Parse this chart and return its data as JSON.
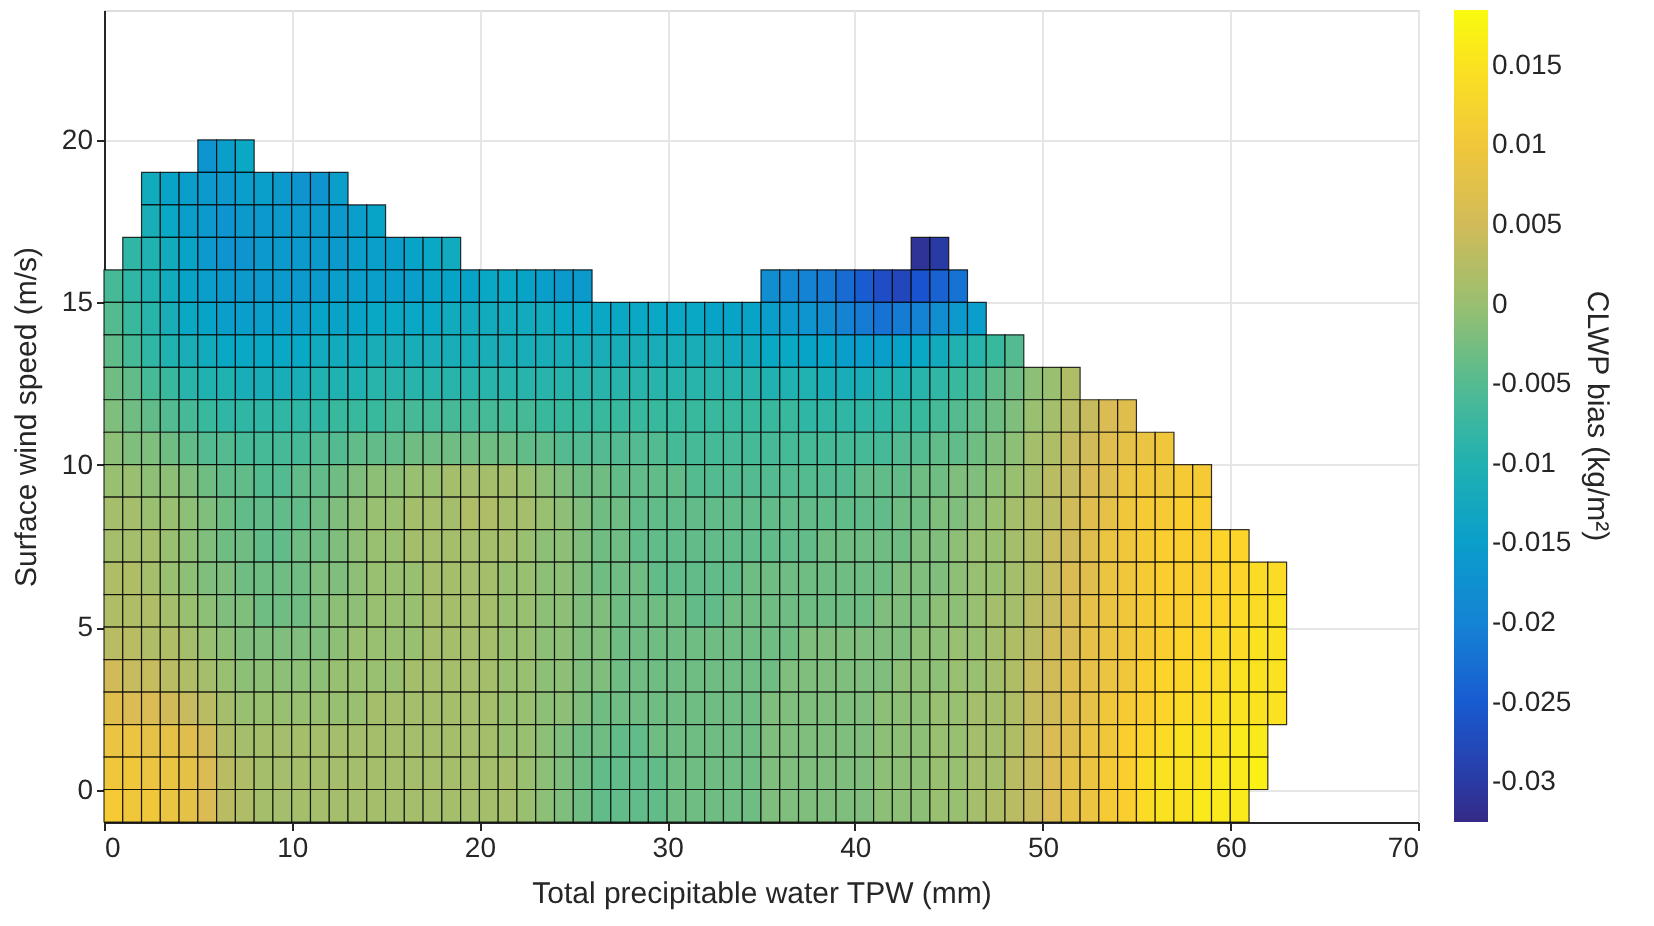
{
  "chart_data": {
    "type": "heatmap",
    "xlabel": "Total precipitable water TPW (mm)",
    "ylabel": "Surface wind speed (m/s)",
    "clabel": "CLWP bias (kg/m²)",
    "x": [
      0.5,
      1.5,
      2.5,
      3.5,
      4.5,
      5.5,
      6.5,
      7.5,
      8.5,
      9.5,
      10.5,
      11.5,
      12.5,
      13.5,
      14.5,
      15.5,
      16.5,
      17.5,
      18.5,
      19.5,
      20.5,
      21.5,
      22.5,
      23.5,
      24.5,
      25.5,
      26.5,
      27.5,
      28.5,
      29.5,
      30.5,
      31.5,
      32.5,
      33.5,
      34.5,
      35.5,
      36.5,
      37.5,
      38.5,
      39.5,
      40.5,
      41.5,
      42.5,
      43.5,
      44.5,
      45.5,
      46.5,
      47.5,
      48.5,
      49.5,
      50.5,
      51.5,
      52.5,
      53.5,
      54.5,
      55.5,
      56.5,
      57.5,
      58.5,
      59.5,
      60.5,
      61.5,
      62.5
    ],
    "y": [
      19.5,
      18.5,
      17.5,
      16.5,
      15.5,
      14.5,
      13.5,
      12.5,
      11.5,
      10.5,
      9.5,
      8.5,
      7.5,
      6.5,
      5.5,
      4.5,
      3.5,
      2.5,
      1.5,
      0.5,
      -0.5
    ],
    "cells": [
      [
        null,
        null,
        null,
        null,
        null,
        -0.017,
        -0.015,
        -0.013,
        null,
        null,
        null,
        null,
        null,
        null,
        null,
        null,
        null,
        null,
        null,
        null,
        null,
        null,
        null,
        null,
        null,
        null,
        null,
        null,
        null,
        null,
        null,
        null,
        null,
        null,
        null,
        null,
        null,
        null,
        null,
        null,
        null,
        null,
        null,
        null,
        null,
        null,
        null,
        null,
        null,
        null,
        null,
        null,
        null,
        null,
        null,
        null,
        null,
        null,
        null,
        null,
        null,
        null,
        null
      ],
      [
        null,
        null,
        -0.012,
        -0.014,
        -0.015,
        -0.016,
        -0.016,
        -0.015,
        -0.015,
        -0.016,
        -0.017,
        -0.017,
        -0.015,
        null,
        null,
        null,
        null,
        null,
        null,
        null,
        null,
        null,
        null,
        null,
        null,
        null,
        null,
        null,
        null,
        null,
        null,
        null,
        null,
        null,
        null,
        null,
        null,
        null,
        null,
        null,
        null,
        null,
        null,
        null,
        null,
        null,
        null,
        null,
        null,
        null,
        null,
        null,
        null,
        null,
        null,
        null,
        null,
        null,
        null,
        null,
        null,
        null,
        null
      ],
      [
        null,
        null,
        -0.011,
        -0.013,
        -0.015,
        -0.016,
        -0.017,
        -0.016,
        -0.016,
        -0.016,
        -0.016,
        -0.016,
        -0.016,
        -0.015,
        -0.014,
        null,
        null,
        null,
        null,
        null,
        null,
        null,
        null,
        null,
        null,
        null,
        null,
        null,
        null,
        null,
        null,
        null,
        null,
        null,
        null,
        null,
        null,
        null,
        null,
        null,
        null,
        null,
        null,
        null,
        null,
        null,
        null,
        null,
        null,
        null,
        null,
        null,
        null,
        null,
        null,
        null,
        null,
        null,
        null,
        null,
        null,
        null,
        null
      ],
      [
        null,
        -0.008,
        -0.01,
        -0.012,
        -0.014,
        -0.016,
        -0.017,
        -0.017,
        -0.016,
        -0.016,
        -0.016,
        -0.016,
        -0.016,
        -0.015,
        -0.015,
        -0.015,
        -0.014,
        -0.013,
        -0.012,
        null,
        null,
        null,
        null,
        null,
        null,
        null,
        null,
        null,
        null,
        null,
        null,
        null,
        null,
        null,
        null,
        null,
        null,
        null,
        null,
        null,
        null,
        null,
        null,
        -0.031,
        -0.03,
        null,
        null,
        null,
        null,
        null,
        null,
        null,
        null,
        null,
        null,
        null,
        null,
        null,
        null,
        null,
        null,
        null,
        null
      ],
      [
        -0.006,
        -0.008,
        -0.01,
        -0.012,
        -0.014,
        -0.015,
        -0.016,
        -0.016,
        -0.016,
        -0.016,
        -0.016,
        -0.016,
        -0.015,
        -0.015,
        -0.015,
        -0.015,
        -0.015,
        -0.014,
        -0.014,
        -0.014,
        -0.013,
        -0.013,
        -0.014,
        -0.015,
        -0.016,
        -0.016,
        null,
        null,
        null,
        null,
        null,
        null,
        null,
        null,
        null,
        -0.018,
        -0.019,
        -0.02,
        -0.021,
        -0.023,
        -0.025,
        -0.027,
        -0.028,
        -0.026,
        -0.024,
        -0.022,
        null,
        null,
        null,
        null,
        null,
        null,
        null,
        null,
        null,
        null,
        null,
        null,
        null,
        null,
        null,
        null,
        null
      ],
      [
        -0.005,
        -0.007,
        -0.009,
        -0.011,
        -0.013,
        -0.014,
        -0.015,
        -0.015,
        -0.015,
        -0.015,
        -0.015,
        -0.014,
        -0.014,
        -0.014,
        -0.013,
        -0.013,
        -0.013,
        -0.013,
        -0.012,
        -0.012,
        -0.012,
        -0.012,
        -0.012,
        -0.012,
        -0.013,
        -0.013,
        -0.013,
        -0.013,
        -0.013,
        -0.013,
        -0.013,
        -0.013,
        -0.014,
        -0.014,
        -0.014,
        -0.015,
        -0.016,
        -0.017,
        -0.018,
        -0.02,
        -0.021,
        -0.022,
        -0.021,
        -0.02,
        -0.018,
        -0.016,
        -0.015,
        null,
        null,
        null,
        null,
        null,
        null,
        null,
        null,
        null,
        null,
        null,
        null,
        null,
        null,
        null,
        null
      ],
      [
        -0.004,
        -0.006,
        -0.008,
        -0.01,
        -0.011,
        -0.012,
        -0.013,
        -0.013,
        -0.013,
        -0.013,
        -0.013,
        -0.012,
        -0.012,
        -0.012,
        -0.011,
        -0.011,
        -0.011,
        -0.011,
        -0.011,
        -0.011,
        -0.011,
        -0.011,
        -0.011,
        -0.011,
        -0.011,
        -0.011,
        -0.011,
        -0.011,
        -0.011,
        -0.011,
        -0.011,
        -0.011,
        -0.011,
        -0.012,
        -0.012,
        -0.013,
        -0.013,
        -0.014,
        -0.014,
        -0.015,
        -0.015,
        -0.015,
        -0.014,
        -0.013,
        -0.012,
        -0.01,
        -0.009,
        -0.007,
        -0.005,
        null,
        null,
        null,
        null,
        null,
        null,
        null,
        null,
        null,
        null,
        null,
        null,
        null,
        null
      ],
      [
        -0.003,
        -0.004,
        -0.006,
        -0.007,
        -0.009,
        -0.01,
        -0.01,
        -0.011,
        -0.011,
        -0.011,
        -0.011,
        -0.01,
        -0.01,
        -0.01,
        -0.009,
        -0.009,
        -0.009,
        -0.009,
        -0.009,
        -0.009,
        -0.009,
        -0.009,
        -0.009,
        -0.009,
        -0.009,
        -0.009,
        -0.009,
        -0.009,
        -0.009,
        -0.009,
        -0.009,
        -0.009,
        -0.009,
        -0.009,
        -0.009,
        -0.01,
        -0.01,
        -0.01,
        -0.011,
        -0.011,
        -0.011,
        -0.01,
        -0.01,
        -0.009,
        -0.008,
        -0.007,
        -0.006,
        -0.004,
        -0.003,
        -0.001,
        0.0,
        0.002,
        null,
        null,
        null,
        null,
        null,
        null,
        null,
        null,
        null,
        null,
        null
      ],
      [
        -0.002,
        -0.003,
        -0.004,
        -0.005,
        -0.006,
        -0.007,
        -0.008,
        -0.008,
        -0.008,
        -0.008,
        -0.008,
        -0.008,
        -0.007,
        -0.007,
        -0.007,
        -0.006,
        -0.006,
        -0.006,
        -0.006,
        -0.006,
        -0.006,
        -0.006,
        -0.006,
        -0.007,
        -0.007,
        -0.007,
        -0.007,
        -0.007,
        -0.007,
        -0.007,
        -0.007,
        -0.007,
        -0.007,
        -0.007,
        -0.007,
        -0.007,
        -0.007,
        -0.008,
        -0.008,
        -0.008,
        -0.008,
        -0.008,
        -0.007,
        -0.007,
        -0.006,
        -0.005,
        -0.004,
        -0.003,
        -0.002,
        0.0,
        0.001,
        0.003,
        0.004,
        0.006,
        0.007,
        null,
        null,
        null,
        null,
        null,
        null,
        null,
        null
      ],
      [
        -0.001,
        -0.002,
        -0.002,
        -0.003,
        -0.004,
        -0.005,
        -0.005,
        -0.006,
        -0.006,
        -0.006,
        -0.006,
        -0.005,
        -0.005,
        -0.004,
        -0.004,
        -0.004,
        -0.003,
        -0.003,
        -0.003,
        -0.003,
        -0.003,
        -0.003,
        -0.004,
        -0.004,
        -0.005,
        -0.005,
        -0.005,
        -0.005,
        -0.005,
        -0.005,
        -0.006,
        -0.006,
        -0.006,
        -0.006,
        -0.006,
        -0.006,
        -0.006,
        -0.006,
        -0.006,
        -0.006,
        -0.006,
        -0.006,
        -0.005,
        -0.005,
        -0.004,
        -0.004,
        -0.003,
        -0.002,
        -0.001,
        0.001,
        0.002,
        0.004,
        0.005,
        0.007,
        0.008,
        0.009,
        0.01,
        null,
        null,
        null,
        null,
        null,
        null
      ],
      [
        0.0,
        0.0,
        -0.001,
        -0.001,
        -0.002,
        -0.003,
        -0.004,
        -0.004,
        -0.005,
        -0.005,
        -0.004,
        -0.004,
        -0.003,
        -0.002,
        -0.001,
        -0.001,
        0.0,
        0.0,
        0.001,
        0.001,
        0.001,
        0.001,
        0.0,
        -0.001,
        -0.002,
        -0.003,
        -0.003,
        -0.004,
        -0.004,
        -0.004,
        -0.004,
        -0.005,
        -0.005,
        -0.005,
        -0.005,
        -0.005,
        -0.005,
        -0.005,
        -0.005,
        -0.005,
        -0.004,
        -0.004,
        -0.004,
        -0.003,
        -0.003,
        -0.002,
        -0.002,
        -0.001,
        0.0,
        0.001,
        0.003,
        0.004,
        0.006,
        0.007,
        0.009,
        0.01,
        0.01,
        0.011,
        0.011,
        null,
        null,
        null,
        null
      ],
      [
        0.001,
        0.001,
        0.0,
        0.0,
        -0.001,
        -0.002,
        -0.003,
        -0.004,
        -0.004,
        -0.004,
        -0.004,
        -0.003,
        -0.002,
        -0.001,
        0.0,
        0.0,
        0.001,
        0.001,
        0.001,
        0.002,
        0.002,
        0.001,
        0.001,
        0.0,
        -0.001,
        -0.002,
        -0.003,
        -0.003,
        -0.004,
        -0.004,
        -0.004,
        -0.004,
        -0.004,
        -0.004,
        -0.004,
        -0.004,
        -0.004,
        -0.004,
        -0.004,
        -0.004,
        -0.004,
        -0.004,
        -0.003,
        -0.003,
        -0.002,
        -0.002,
        -0.001,
        0.0,
        0.001,
        0.002,
        0.003,
        0.005,
        0.007,
        0.008,
        0.01,
        0.011,
        0.011,
        0.012,
        0.012,
        null,
        null,
        null,
        null
      ],
      [
        0.001,
        0.001,
        0.001,
        0.0,
        -0.001,
        -0.002,
        -0.003,
        -0.003,
        -0.004,
        -0.004,
        -0.003,
        -0.003,
        -0.002,
        -0.001,
        0.0,
        0.0,
        0.001,
        0.001,
        0.001,
        0.001,
        0.001,
        0.001,
        0.0,
        -0.001,
        -0.001,
        -0.002,
        -0.003,
        -0.003,
        -0.004,
        -0.004,
        -0.004,
        -0.004,
        -0.004,
        -0.004,
        -0.004,
        -0.004,
        -0.004,
        -0.004,
        -0.003,
        -0.003,
        -0.003,
        -0.003,
        -0.003,
        -0.002,
        -0.002,
        -0.001,
        0.0,
        0.0,
        0.001,
        0.002,
        0.004,
        0.005,
        0.007,
        0.009,
        0.01,
        0.011,
        0.012,
        0.012,
        0.012,
        0.013,
        0.013,
        null,
        null
      ],
      [
        0.002,
        0.002,
        0.001,
        0.0,
        -0.001,
        -0.002,
        -0.002,
        -0.003,
        -0.003,
        -0.003,
        -0.003,
        -0.002,
        -0.002,
        -0.001,
        0.0,
        0.0,
        0.0,
        0.001,
        0.001,
        0.001,
        0.001,
        0.0,
        0.0,
        -0.001,
        -0.001,
        -0.002,
        -0.003,
        -0.003,
        -0.003,
        -0.004,
        -0.004,
        -0.004,
        -0.004,
        -0.004,
        -0.003,
        -0.003,
        -0.003,
        -0.003,
        -0.003,
        -0.003,
        -0.003,
        -0.003,
        -0.002,
        -0.002,
        -0.002,
        -0.001,
        0.0,
        0.0,
        0.001,
        0.002,
        0.004,
        0.006,
        0.007,
        0.009,
        0.01,
        0.011,
        0.012,
        0.012,
        0.012,
        0.013,
        0.013,
        0.014,
        0.014
      ],
      [
        0.002,
        0.002,
        0.002,
        0.001,
        0.0,
        -0.001,
        -0.002,
        -0.002,
        -0.003,
        -0.003,
        -0.003,
        -0.002,
        -0.001,
        -0.001,
        0.0,
        0.0,
        0.0,
        0.001,
        0.001,
        0.001,
        0.001,
        0.0,
        0.0,
        -0.001,
        -0.001,
        -0.002,
        -0.002,
        -0.003,
        -0.003,
        -0.003,
        -0.003,
        -0.004,
        -0.004,
        -0.003,
        -0.003,
        -0.003,
        -0.003,
        -0.003,
        -0.003,
        -0.003,
        -0.003,
        -0.002,
        -0.002,
        -0.002,
        -0.001,
        -0.001,
        0.0,
        0.001,
        0.001,
        0.003,
        0.004,
        0.006,
        0.008,
        0.009,
        0.01,
        0.011,
        0.012,
        0.012,
        0.013,
        0.013,
        0.014,
        0.014,
        0.015
      ],
      [
        0.003,
        0.003,
        0.002,
        0.002,
        0.001,
        0.0,
        -0.001,
        -0.002,
        -0.002,
        -0.002,
        -0.002,
        -0.002,
        -0.001,
        0.0,
        0.0,
        0.0,
        0.0,
        0.001,
        0.001,
        0.001,
        0.001,
        0.0,
        0.0,
        -0.001,
        -0.001,
        -0.002,
        -0.002,
        -0.003,
        -0.003,
        -0.003,
        -0.003,
        -0.003,
        -0.003,
        -0.003,
        -0.003,
        -0.003,
        -0.003,
        -0.002,
        -0.002,
        -0.002,
        -0.002,
        -0.002,
        -0.002,
        -0.001,
        -0.001,
        0.0,
        0.0,
        0.001,
        0.002,
        0.003,
        0.005,
        0.006,
        0.008,
        0.009,
        0.01,
        0.011,
        0.012,
        0.013,
        0.013,
        0.014,
        0.014,
        0.015,
        0.015
      ],
      [
        0.005,
        0.004,
        0.004,
        0.003,
        0.002,
        0.001,
        0.0,
        -0.001,
        -0.001,
        -0.001,
        -0.001,
        -0.001,
        0.0,
        0.0,
        0.0,
        0.0,
        0.001,
        0.001,
        0.001,
        0.001,
        0.001,
        0.0,
        0.0,
        -0.001,
        -0.001,
        -0.002,
        -0.002,
        -0.003,
        -0.003,
        -0.003,
        -0.003,
        -0.003,
        -0.003,
        -0.003,
        -0.003,
        -0.003,
        -0.002,
        -0.002,
        -0.002,
        -0.002,
        -0.002,
        -0.002,
        -0.001,
        -0.001,
        -0.001,
        0.0,
        0.0,
        0.001,
        0.002,
        0.004,
        0.005,
        0.007,
        0.008,
        0.009,
        0.01,
        0.012,
        0.013,
        0.013,
        0.014,
        0.014,
        0.015,
        0.015,
        0.015
      ],
      [
        0.007,
        0.006,
        0.006,
        0.005,
        0.004,
        0.003,
        0.001,
        0.0,
        0.0,
        0.0,
        0.0,
        0.0,
        0.0,
        0.0,
        0.001,
        0.001,
        0.001,
        0.001,
        0.001,
        0.001,
        0.001,
        0.0,
        0.0,
        -0.001,
        -0.001,
        -0.002,
        -0.003,
        -0.003,
        -0.003,
        -0.003,
        -0.003,
        -0.003,
        -0.003,
        -0.003,
        -0.003,
        -0.002,
        -0.002,
        -0.002,
        -0.002,
        -0.002,
        -0.002,
        -0.001,
        -0.001,
        -0.001,
        0.0,
        0.0,
        0.001,
        0.001,
        0.002,
        0.004,
        0.005,
        0.007,
        0.008,
        0.01,
        0.011,
        0.012,
        0.013,
        0.014,
        0.014,
        0.015,
        0.015,
        0.015,
        0.015
      ],
      [
        0.009,
        0.009,
        0.008,
        0.008,
        0.007,
        0.005,
        0.002,
        0.001,
        0.001,
        0.001,
        0.001,
        0.001,
        0.001,
        0.001,
        0.001,
        0.001,
        0.001,
        0.001,
        0.001,
        0.001,
        0.001,
        0.0,
        0.0,
        -0.001,
        -0.002,
        -0.003,
        -0.003,
        -0.004,
        -0.004,
        -0.003,
        -0.003,
        -0.003,
        -0.003,
        -0.003,
        -0.003,
        -0.002,
        -0.002,
        -0.002,
        -0.002,
        -0.002,
        -0.002,
        -0.001,
        -0.001,
        -0.001,
        0.0,
        0.0,
        0.001,
        0.001,
        0.002,
        0.004,
        0.006,
        0.007,
        0.009,
        0.01,
        0.012,
        0.013,
        0.014,
        0.015,
        0.015,
        0.015,
        0.016,
        0.016,
        null
      ],
      [
        0.01,
        0.01,
        0.009,
        0.009,
        0.008,
        0.006,
        0.003,
        0.002,
        0.001,
        0.001,
        0.001,
        0.001,
        0.001,
        0.001,
        0.001,
        0.001,
        0.001,
        0.001,
        0.001,
        0.001,
        0.001,
        0.001,
        0.0,
        -0.001,
        -0.002,
        -0.003,
        -0.004,
        -0.004,
        -0.004,
        -0.004,
        -0.003,
        -0.003,
        -0.003,
        -0.003,
        -0.003,
        -0.002,
        -0.002,
        -0.002,
        -0.002,
        -0.002,
        -0.002,
        -0.001,
        -0.001,
        -0.001,
        0.0,
        0.0,
        0.001,
        0.001,
        0.003,
        0.004,
        0.006,
        0.008,
        0.009,
        0.011,
        0.012,
        0.014,
        0.015,
        0.015,
        0.015,
        0.016,
        0.016,
        0.017,
        null
      ],
      [
        0.011,
        0.01,
        0.01,
        0.009,
        0.008,
        0.006,
        0.003,
        0.002,
        0.001,
        0.001,
        0.001,
        0.001,
        0.001,
        0.001,
        0.001,
        0.001,
        0.001,
        0.001,
        0.001,
        0.001,
        0.001,
        0.001,
        0.0,
        -0.001,
        -0.002,
        -0.003,
        -0.004,
        -0.004,
        -0.004,
        -0.004,
        -0.003,
        -0.003,
        -0.003,
        -0.003,
        -0.003,
        -0.002,
        -0.002,
        -0.002,
        -0.002,
        -0.002,
        -0.002,
        -0.001,
        -0.001,
        -0.001,
        0.0,
        0.0,
        0.001,
        0.002,
        0.003,
        0.004,
        0.006,
        0.008,
        0.009,
        0.011,
        0.012,
        0.014,
        0.015,
        0.015,
        0.016,
        0.016,
        0.016,
        null,
        null
      ]
    ],
    "xlim": [
      0,
      70
    ],
    "xticks": [
      0,
      10,
      20,
      30,
      40,
      50,
      60,
      70
    ],
    "ylim": [
      -1,
      24
    ],
    "yticks": [
      0,
      5,
      10,
      15,
      20
    ],
    "clim": [
      -0.0325,
      0.0185
    ],
    "cticks": [
      -0.03,
      -0.025,
      -0.02,
      -0.015,
      -0.01,
      -0.005,
      0,
      0.005,
      0.01,
      0.015
    ],
    "grid": true
  }
}
